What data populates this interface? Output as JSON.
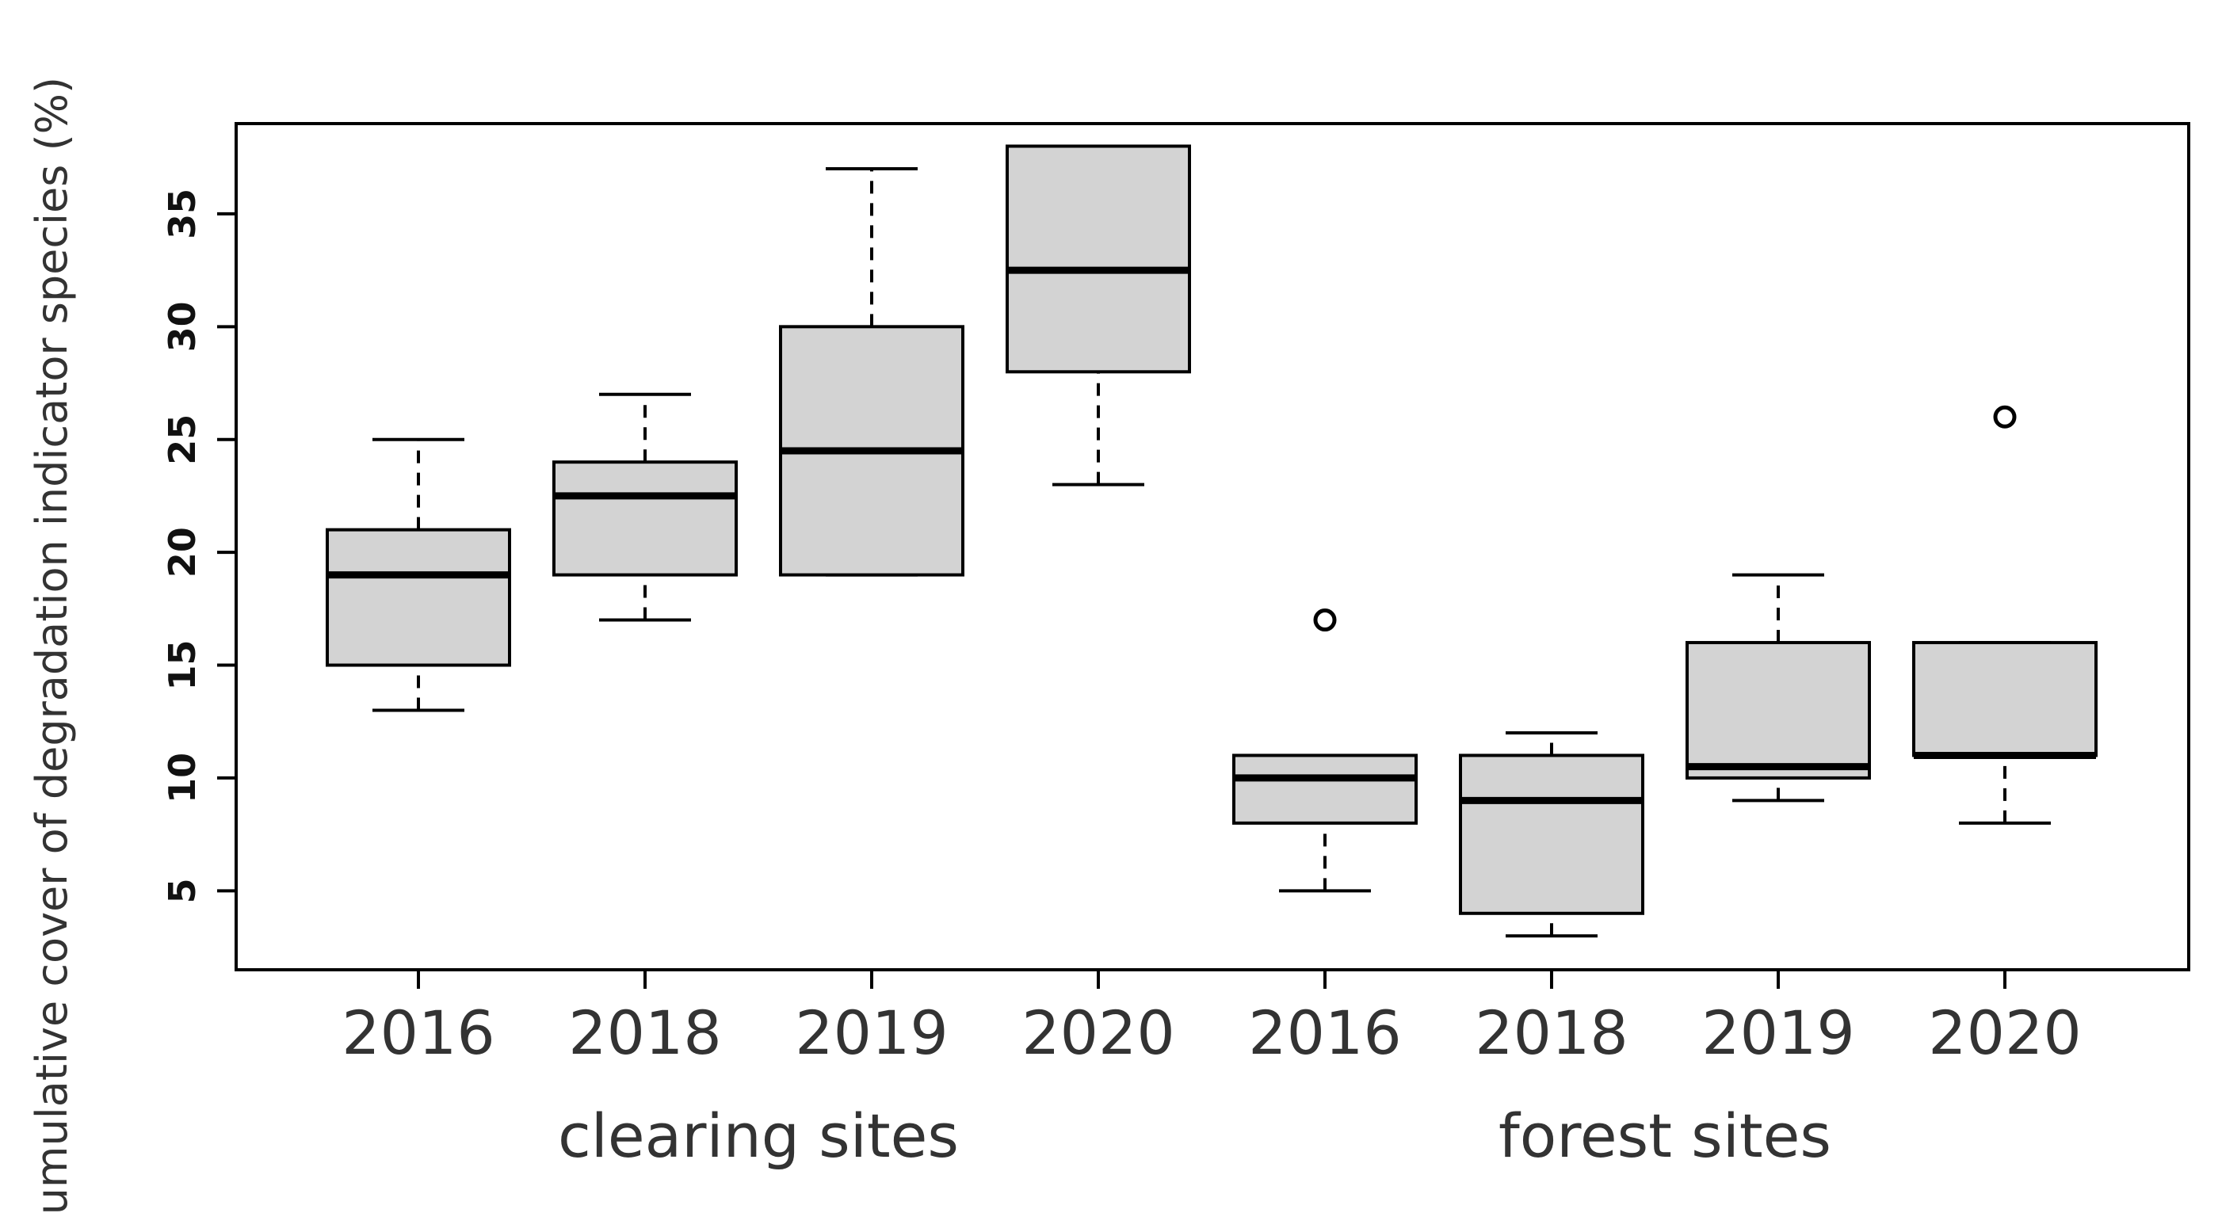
{
  "chart_data": {
    "type": "boxplot",
    "title": "",
    "ylabel": "cumulative cover of degradation indicator species (%)",
    "ylim": [
      1.5,
      39
    ],
    "yticks": [
      5,
      10,
      15,
      20,
      25,
      30,
      35
    ],
    "grid": false,
    "colors": {
      "box_fill": "#d3d3d3",
      "stroke": "#000000"
    },
    "groups": [
      {
        "label": "clearing sites",
        "categories": [
          "2016",
          "2018",
          "2019",
          "2020"
        ]
      },
      {
        "label": "forest sites",
        "categories": [
          "2016",
          "2018",
          "2019",
          "2020"
        ]
      }
    ],
    "boxes": [
      {
        "group": "clearing sites",
        "category": "2016",
        "whisker_low": 13,
        "q1": 15,
        "median": 19,
        "q3": 21,
        "whisker_high": 25,
        "outliers": []
      },
      {
        "group": "clearing sites",
        "category": "2018",
        "whisker_low": 17,
        "q1": 19,
        "median": 22.5,
        "q3": 24,
        "whisker_high": 27,
        "outliers": []
      },
      {
        "group": "clearing sites",
        "category": "2019",
        "whisker_low": 19,
        "q1": 19,
        "median": 24.5,
        "q3": 30,
        "whisker_high": 37,
        "outliers": []
      },
      {
        "group": "clearing sites",
        "category": "2020",
        "whisker_low": 23,
        "q1": 28,
        "median": 32.5,
        "q3": 38,
        "whisker_high": 38,
        "outliers": []
      },
      {
        "group": "forest sites",
        "category": "2016",
        "whisker_low": 5,
        "q1": 8,
        "median": 10,
        "q3": 11,
        "whisker_high": 11,
        "outliers": [
          17
        ]
      },
      {
        "group": "forest sites",
        "category": "2018",
        "whisker_low": 3,
        "q1": 4,
        "median": 9,
        "q3": 11,
        "whisker_high": 12,
        "outliers": []
      },
      {
        "group": "forest sites",
        "category": "2019",
        "whisker_low": 9,
        "q1": 10,
        "median": 10.5,
        "q3": 16,
        "whisker_high": 19,
        "outliers": []
      },
      {
        "group": "forest sites",
        "category": "2020",
        "whisker_low": 8,
        "q1": 11,
        "median": 11,
        "q3": 16,
        "whisker_high": 16,
        "outliers": [
          26
        ]
      }
    ]
  }
}
